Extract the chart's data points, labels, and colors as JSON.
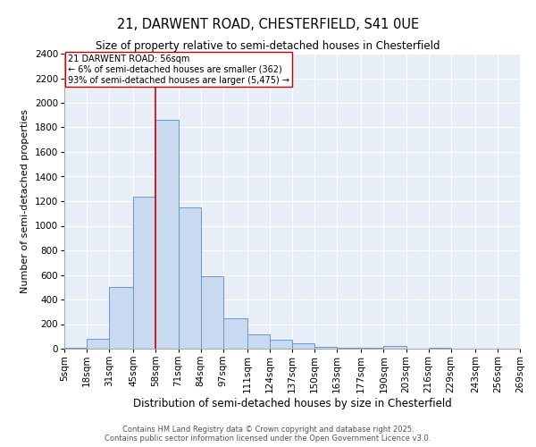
{
  "title1": "21, DARWENT ROAD, CHESTERFIELD, S41 0UE",
  "title2": "Size of property relative to semi-detached houses in Chesterfield",
  "xlabel": "Distribution of semi-detached houses by size in Chesterfield",
  "ylabel": "Number of semi-detached properties",
  "footer": "Contains HM Land Registry data © Crown copyright and database right 2025.\nContains public sector information licensed under the Open Government Licence v3.0.",
  "bins": [
    5,
    18,
    31,
    45,
    58,
    71,
    84,
    97,
    111,
    124,
    137,
    150,
    163,
    177,
    190,
    203,
    216,
    229,
    243,
    256,
    269
  ],
  "bin_labels": [
    "5sqm",
    "18sqm",
    "31sqm",
    "45sqm",
    "58sqm",
    "71sqm",
    "84sqm",
    "97sqm",
    "111sqm",
    "124sqm",
    "137sqm",
    "150sqm",
    "163sqm",
    "177sqm",
    "190sqm",
    "203sqm",
    "216sqm",
    "229sqm",
    "243sqm",
    "256sqm",
    "269sqm"
  ],
  "heights": [
    10,
    80,
    500,
    1240,
    1860,
    1150,
    590,
    245,
    120,
    70,
    45,
    15,
    10,
    5,
    25,
    0,
    10,
    0,
    0,
    0
  ],
  "bar_facecolor": "#c9d9f0",
  "bar_edgecolor": "#6699cc",
  "grid_color": "#ffffff",
  "bg_color": "#e8eef8",
  "property_line_x": 58,
  "property_line_color": "#cc0000",
  "annotation_text": "21 DARWENT ROAD: 56sqm\n← 6% of semi-detached houses are smaller (362)\n93% of semi-detached houses are larger (5,475) →",
  "annotation_box_edgecolor": "#cc0000",
  "ylim": [
    0,
    2400
  ],
  "yticks": [
    0,
    200,
    400,
    600,
    800,
    1000,
    1200,
    1400,
    1600,
    1800,
    2000,
    2200,
    2400
  ],
  "title1_fontsize": 10.5,
  "title2_fontsize": 8.5,
  "xlabel_fontsize": 8.5,
  "ylabel_fontsize": 8,
  "tick_fontsize": 7.5,
  "footer_fontsize": 6.0
}
